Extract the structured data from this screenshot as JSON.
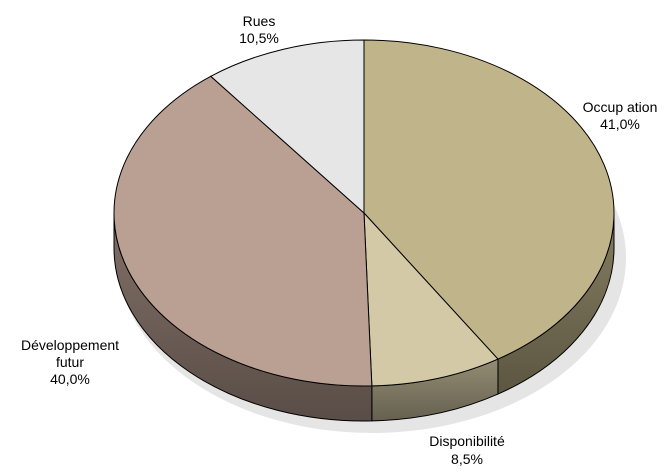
{
  "chart_data": {
    "type": "pie",
    "style": "3d",
    "title": "",
    "slices": [
      {
        "label_lines": [
          "Occup ation"
        ],
        "value": 41.0,
        "value_label": "41,0%",
        "color": "#bfb48a"
      },
      {
        "label_lines": [
          "Disponibilité"
        ],
        "value": 8.5,
        "value_label": "8,5%",
        "color": "#d3c9a6"
      },
      {
        "label_lines": [
          "Développement",
          "futur"
        ],
        "value": 40.0,
        "value_label": "40,0%",
        "color": "#b9a093"
      },
      {
        "label_lines": [
          "Rues"
        ],
        "value": 10.5,
        "value_label": "10,5%",
        "color": "#e6e6e6"
      }
    ]
  }
}
